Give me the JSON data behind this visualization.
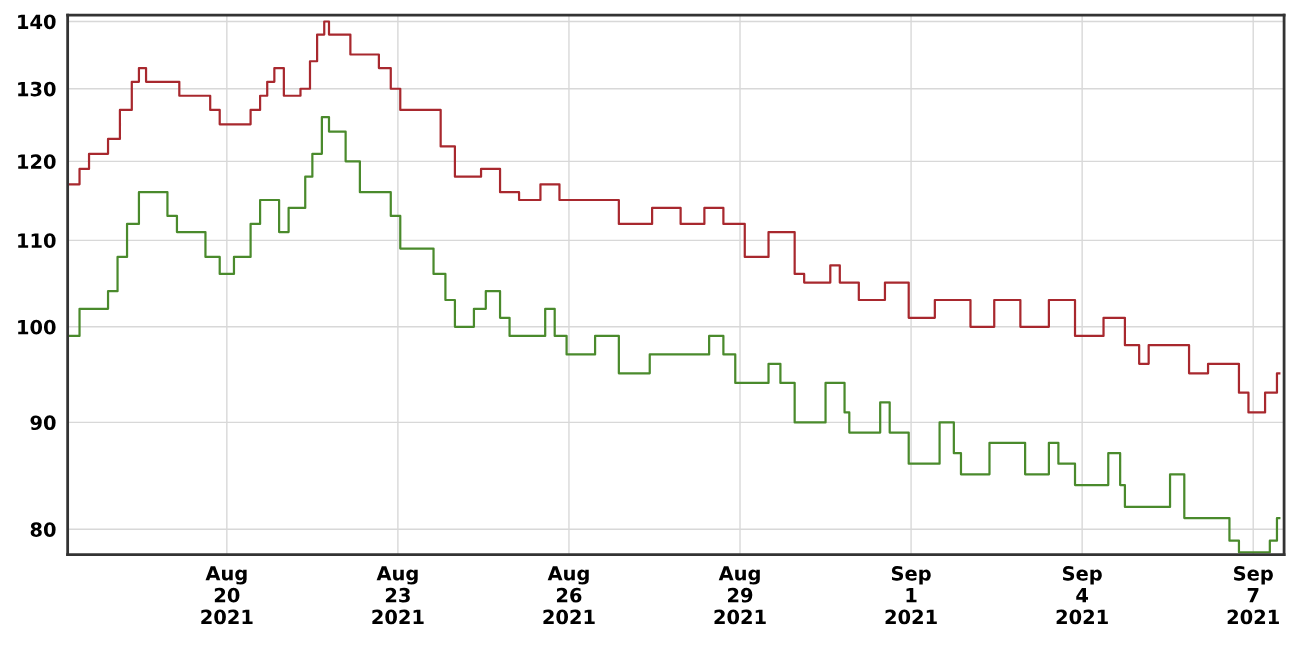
{
  "chart_data": {
    "type": "step",
    "xlim": [
      "2021-08-17T05:00",
      "2021-09-07T13:00"
    ],
    "xticks": [
      {
        "value": "2021-08-20",
        "label": "Aug\n20\n2021"
      },
      {
        "value": "2021-08-23",
        "label": "Aug\n23\n2021"
      },
      {
        "value": "2021-08-26",
        "label": "Aug\n26\n2021"
      },
      {
        "value": "2021-08-29",
        "label": "Aug\n29\n2021"
      },
      {
        "value": "2021-09-01",
        "label": "Sep\n1\n2021"
      },
      {
        "value": "2021-09-04",
        "label": "Sep\n4\n2021"
      },
      {
        "value": "2021-09-07",
        "label": "Sep\n7\n2021"
      }
    ],
    "ylim": [
      77.8,
      141
    ],
    "yticks": [
      80,
      90,
      100,
      110,
      120,
      130,
      140
    ],
    "log": true,
    "grid": true,
    "legend": false,
    "series": [
      {
        "color": "#a8282e",
        "x": [
          "2021-08-17T05:00",
          "2021-08-17T10:00",
          "2021-08-17T14:00",
          "2021-08-17T22:00",
          "2021-08-18T03:00",
          "2021-08-18T08:00",
          "2021-08-18T11:00",
          "2021-08-18T14:00",
          "2021-08-19T04:00",
          "2021-08-19T17:00",
          "2021-08-19T21:00",
          "2021-08-20T10:00",
          "2021-08-20T14:00",
          "2021-08-20T17:00",
          "2021-08-20T20:00",
          "2021-08-21T00:00",
          "2021-08-21T07:00",
          "2021-08-21T11:00",
          "2021-08-21T14:00",
          "2021-08-21T17:00",
          "2021-08-21T19:00",
          "2021-08-22T04:00",
          "2021-08-22T16:00",
          "2021-08-22T21:00",
          "2021-08-23T01:00",
          "2021-08-23T18:00",
          "2021-08-24T00:00",
          "2021-08-24T11:00",
          "2021-08-24T19:00",
          "2021-08-25T03:00",
          "2021-08-25T12:00",
          "2021-08-25T20:00",
          "2021-08-26T21:00",
          "2021-08-27T11:00",
          "2021-08-27T23:00",
          "2021-08-28T09:00",
          "2021-08-28T17:00",
          "2021-08-29T02:00",
          "2021-08-29T12:00",
          "2021-08-29T23:00",
          "2021-08-30T03:00",
          "2021-08-30T14:00",
          "2021-08-30T18:00",
          "2021-08-31T02:00",
          "2021-08-31T13:00",
          "2021-08-31T23:00",
          "2021-09-01T10:00",
          "2021-09-02T01:00",
          "2021-09-02T11:00",
          "2021-09-02T22:00",
          "2021-09-03T10:00",
          "2021-09-03T21:00",
          "2021-09-04T09:00",
          "2021-09-04T18:00",
          "2021-09-05T00:00",
          "2021-09-05T04:00",
          "2021-09-05T21:00",
          "2021-09-06T05:00",
          "2021-09-06T18:00",
          "2021-09-06T22:00",
          "2021-09-07T05:00",
          "2021-09-07T10:00",
          "2021-09-07T11:00"
        ],
        "values": [
          117,
          119,
          121,
          123,
          127,
          131,
          133,
          131,
          129,
          127,
          125,
          127,
          129,
          131,
          133,
          129,
          130,
          134,
          138,
          140,
          138,
          135,
          133,
          130,
          127,
          122,
          118,
          119,
          116,
          115,
          117,
          115,
          112,
          114,
          112,
          114,
          112,
          108,
          111,
          106,
          105,
          107,
          105,
          103,
          105,
          101,
          103,
          100,
          103,
          100,
          103,
          99,
          101,
          98,
          96,
          98,
          95,
          96,
          93,
          91,
          93,
          95,
          95
        ]
      },
      {
        "color": "#4a8a2c",
        "x": [
          "2021-08-17T05:00",
          "2021-08-17T10:00",
          "2021-08-17T22:00",
          "2021-08-18T02:00",
          "2021-08-18T06:00",
          "2021-08-18T11:00",
          "2021-08-18T23:00",
          "2021-08-19T03:00",
          "2021-08-19T15:00",
          "2021-08-19T21:00",
          "2021-08-20T03:00",
          "2021-08-20T10:00",
          "2021-08-20T14:00",
          "2021-08-20T22:00",
          "2021-08-21T02:00",
          "2021-08-21T09:00",
          "2021-08-21T12:00",
          "2021-08-21T16:00",
          "2021-08-21T19:00",
          "2021-08-22T02:00",
          "2021-08-22T08:00",
          "2021-08-22T21:00",
          "2021-08-23T01:00",
          "2021-08-23T15:00",
          "2021-08-23T20:00",
          "2021-08-24T00:00",
          "2021-08-24T08:00",
          "2021-08-24T13:00",
          "2021-08-24T19:00",
          "2021-08-24T23:00",
          "2021-08-25T14:00",
          "2021-08-25T18:00",
          "2021-08-25T23:00",
          "2021-08-26T11:00",
          "2021-08-26T21:00",
          "2021-08-27T10:00",
          "2021-08-28T11:00",
          "2021-08-28T17:00",
          "2021-08-28T22:00",
          "2021-08-29T12:00",
          "2021-08-29T17:00",
          "2021-08-29T23:00",
          "2021-08-30T12:00",
          "2021-08-30T20:00",
          "2021-08-30T22:00",
          "2021-08-31T11:00",
          "2021-08-31T15:00",
          "2021-08-31T23:00",
          "2021-09-01T12:00",
          "2021-09-01T18:00",
          "2021-09-01T21:00",
          "2021-09-02T09:00",
          "2021-09-03T00:00",
          "2021-09-03T10:00",
          "2021-09-03T14:00",
          "2021-09-03T21:00",
          "2021-09-04T11:00",
          "2021-09-04T16:00",
          "2021-09-04T18:00",
          "2021-09-05T13:00",
          "2021-09-05T19:00",
          "2021-09-06T14:00",
          "2021-09-06T18:00",
          "2021-09-07T07:00",
          "2021-09-07T10:00",
          "2021-09-07T11:00"
        ],
        "values": [
          99,
          102,
          104,
          108,
          112,
          116,
          113,
          111,
          108,
          106,
          108,
          112,
          115,
          111,
          114,
          118,
          121,
          126,
          124,
          120,
          116,
          113,
          109,
          106,
          103,
          100,
          102,
          104,
          101,
          99,
          102,
          99,
          97,
          99,
          95,
          97,
          99,
          97,
          94,
          96,
          94,
          90,
          94,
          91,
          89,
          92,
          89,
          86,
          90,
          87,
          85,
          88,
          85,
          88,
          86,
          84,
          87,
          84,
          82,
          85,
          81,
          79,
          78,
          79,
          81,
          81
        ]
      }
    ]
  }
}
